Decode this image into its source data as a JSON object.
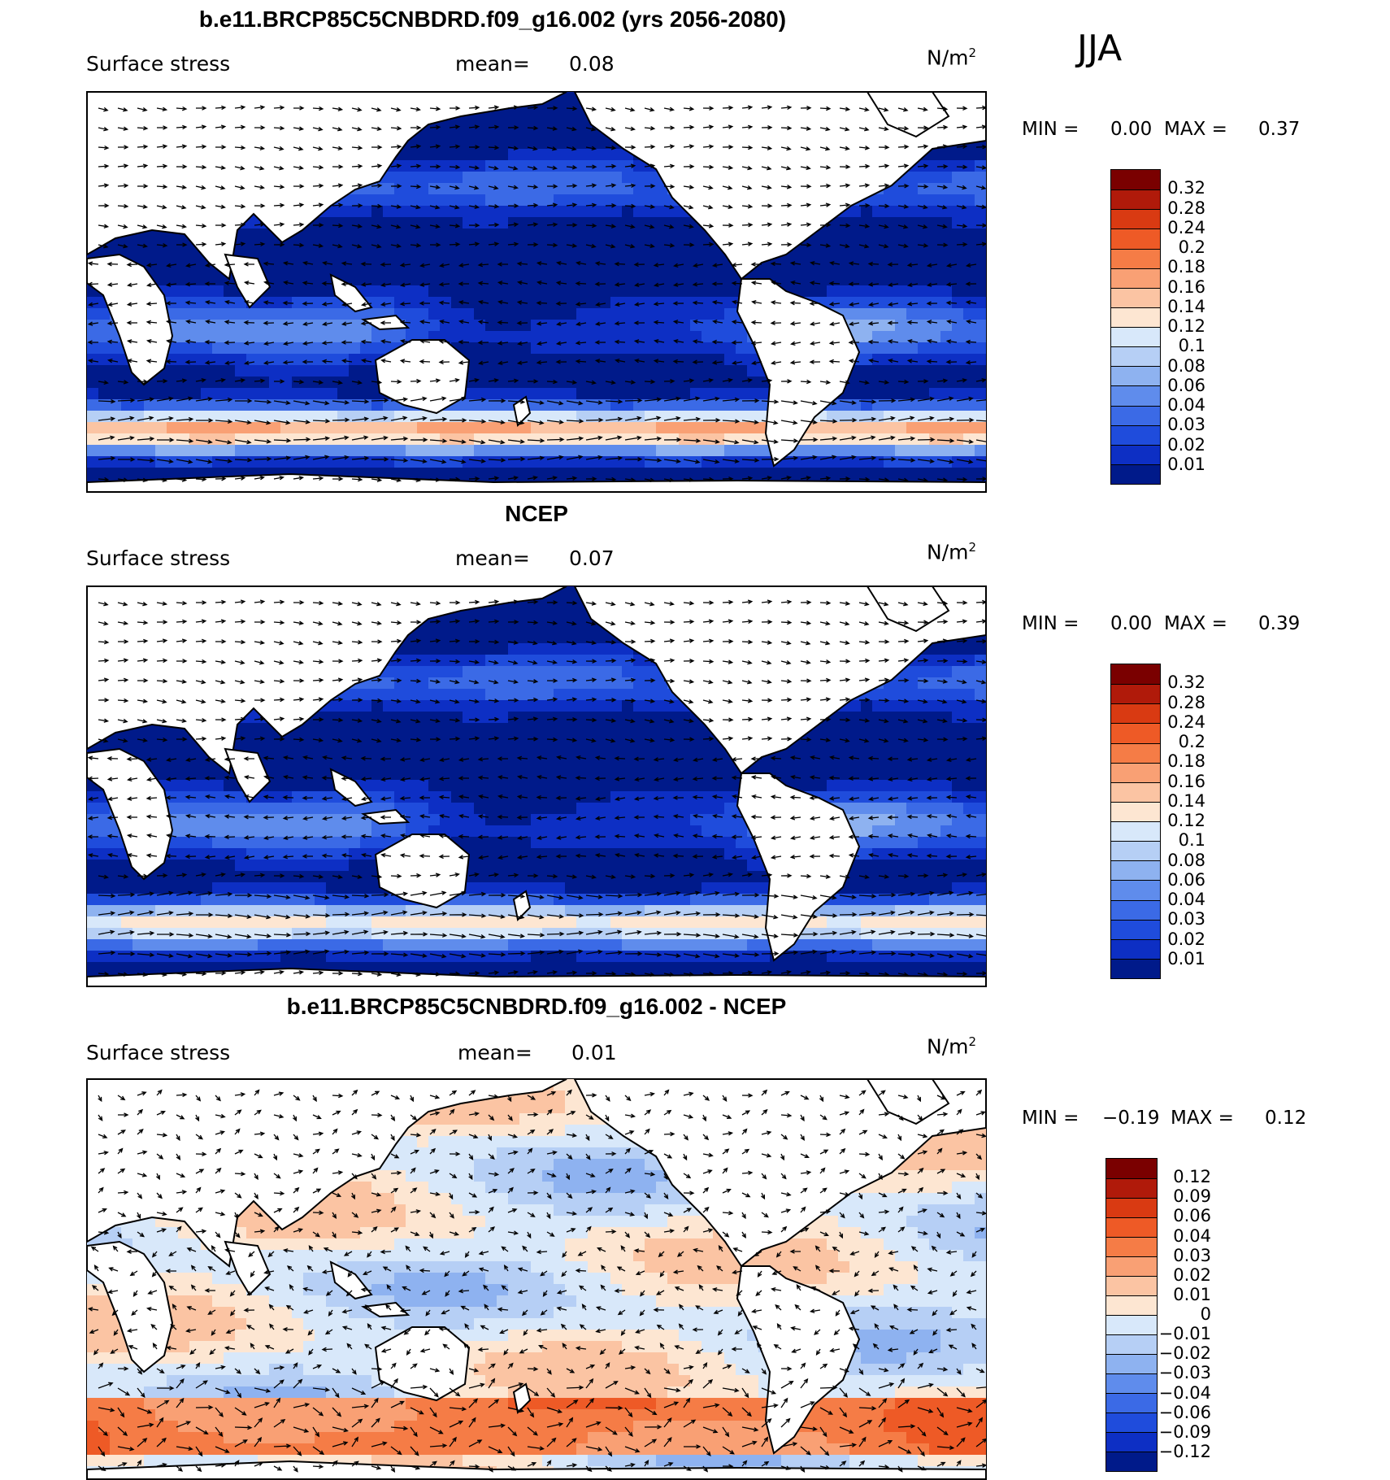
{
  "season": "JJA",
  "panels": [
    {
      "id": "model",
      "title": "b.e11.BRCP85C5CNBDRD.f09_g16.002 (yrs 2056-2080)",
      "variable": "Surface stress",
      "mean_label": "mean=",
      "mean_value": "0.08",
      "units_base": "N/m",
      "units_exp": "2",
      "min_label": "MIN =",
      "min_value": "0.00",
      "max_label": "MAX =",
      "max_value": "0.37"
    },
    {
      "id": "obs",
      "title": "NCEP",
      "variable": "Surface stress",
      "mean_label": "mean=",
      "mean_value": "0.07",
      "units_base": "N/m",
      "units_exp": "2",
      "min_label": "MIN =",
      "min_value": "0.00",
      "max_label": "MAX =",
      "max_value": "0.39"
    },
    {
      "id": "diff",
      "title": "b.e11.BRCP85C5CNBDRD.f09_g16.002 - NCEP",
      "variable": "Surface stress",
      "mean_label": "mean=",
      "mean_value": "0.01",
      "units_base": "N/m",
      "units_exp": "2",
      "min_label": "MIN =",
      "min_value": "−0.19",
      "max_label": "MAX =",
      "max_value": "0.12"
    }
  ],
  "colorbars": {
    "absolute": {
      "labels": [
        "0.32",
        "0.28",
        "0.24",
        "0.2",
        "0.18",
        "0.16",
        "0.14",
        "0.12",
        "0.1",
        "0.08",
        "0.06",
        "0.04",
        "0.03",
        "0.02",
        "0.01"
      ],
      "colors": [
        "#7a0000",
        "#b01a0a",
        "#d93a12",
        "#ee5a26",
        "#f57c46",
        "#f9a074",
        "#fbc4a3",
        "#fde6d2",
        "#d8e8fa",
        "#b6cff5",
        "#8eb2f0",
        "#5f8cec",
        "#3b6ae6",
        "#1f4cdc",
        "#0d2fc4",
        "#001a8a"
      ]
    },
    "difference": {
      "labels": [
        "0.12",
        "0.09",
        "0.06",
        "0.04",
        "0.03",
        "0.02",
        "0.01",
        "0",
        "−0.01",
        "−0.02",
        "−0.03",
        "−0.04",
        "−0.06",
        "−0.09",
        "−0.12"
      ],
      "colors": [
        "#7a0000",
        "#b01a0a",
        "#d93a12",
        "#ee5a26",
        "#f57c46",
        "#f9a074",
        "#fbc4a3",
        "#fde6d2",
        "#d8e8fa",
        "#b6cff5",
        "#8eb2f0",
        "#5f8cec",
        "#3b6ae6",
        "#1f4cdc",
        "#0d2fc4",
        "#001a8a"
      ]
    }
  }
}
